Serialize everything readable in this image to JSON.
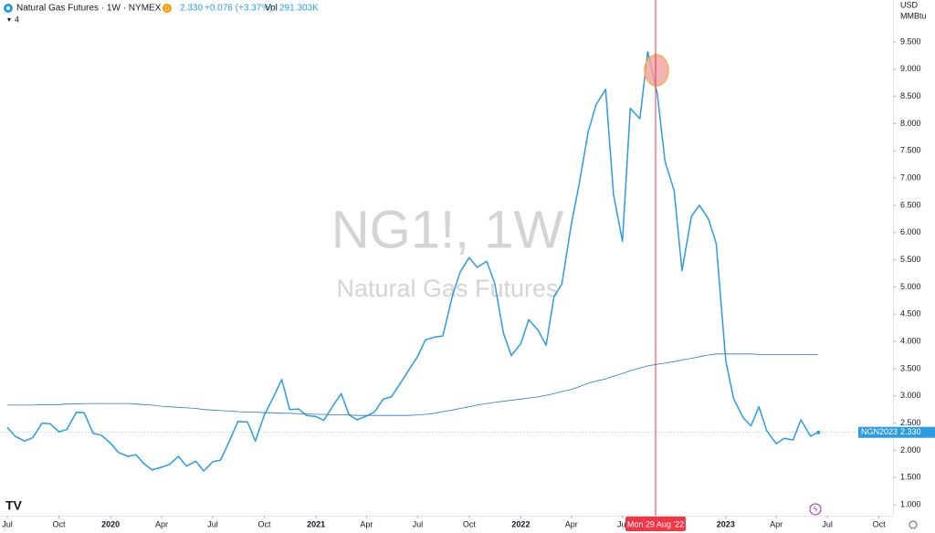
{
  "chart_data": {
    "type": "line",
    "header": {
      "title": "Natural Gas Futures · 1W · NYMEX",
      "badge": "D",
      "last": "2.330",
      "change": "+0.076 (+3.37%)",
      "vol_label": "Vol",
      "volume": "291.303K",
      "indicators": "4"
    },
    "currency": "USD",
    "unit": "MMBtu",
    "watermark": {
      "symbol": "NG1!, 1W",
      "name": "Natural Gas Futures"
    },
    "x": [
      "2019-07-01",
      "2019-07-15",
      "2019-08-01",
      "2019-08-15",
      "2019-09-01",
      "2019-09-15",
      "2019-10-01",
      "2019-10-15",
      "2019-11-01",
      "2019-11-15",
      "2019-12-01",
      "2019-12-15",
      "2020-01-01",
      "2020-01-15",
      "2020-02-01",
      "2020-02-15",
      "2020-03-01",
      "2020-03-15",
      "2020-04-01",
      "2020-04-15",
      "2020-05-01",
      "2020-05-15",
      "2020-06-01",
      "2020-06-15",
      "2020-07-01",
      "2020-07-15",
      "2020-08-01",
      "2020-08-15",
      "2020-09-01",
      "2020-09-15",
      "2020-10-01",
      "2020-10-15",
      "2020-11-01",
      "2020-11-15",
      "2020-12-01",
      "2020-12-15",
      "2021-01-01",
      "2021-01-15",
      "2021-02-01",
      "2021-02-15",
      "2021-03-01",
      "2021-03-15",
      "2021-04-01",
      "2021-04-15",
      "2021-05-01",
      "2021-05-15",
      "2021-06-01",
      "2021-06-15",
      "2021-07-01",
      "2021-07-15",
      "2021-08-01",
      "2021-08-15",
      "2021-09-01",
      "2021-09-15",
      "2021-10-01",
      "2021-10-15",
      "2021-11-01",
      "2021-11-15",
      "2021-12-01",
      "2021-12-15",
      "2022-01-01",
      "2022-01-15",
      "2022-02-01",
      "2022-02-15",
      "2022-03-01",
      "2022-03-15",
      "2022-04-01",
      "2022-04-15",
      "2022-05-01",
      "2022-05-15",
      "2022-06-01",
      "2022-06-15",
      "2022-07-01",
      "2022-07-15",
      "2022-08-01",
      "2022-08-15",
      "2022-09-01",
      "2022-09-15",
      "2022-10-01",
      "2022-10-15",
      "2022-11-01",
      "2022-11-15",
      "2022-12-01",
      "2022-12-15",
      "2023-01-01",
      "2023-01-15",
      "2023-02-01",
      "2023-02-15",
      "2023-03-01",
      "2023-03-15",
      "2023-04-01",
      "2023-04-15",
      "2023-05-01",
      "2023-05-15",
      "2023-06-01",
      "2023-06-15"
    ],
    "series": [
      {
        "name": "NG1!",
        "color": "#2d9be0",
        "width": 1.5,
        "values": [
          2.42,
          2.26,
          2.17,
          2.23,
          2.5,
          2.49,
          2.34,
          2.38,
          2.7,
          2.69,
          2.31,
          2.28,
          2.13,
          1.96,
          1.89,
          1.92,
          1.75,
          1.64,
          1.69,
          1.74,
          1.89,
          1.71,
          1.8,
          1.62,
          1.79,
          1.82,
          2.2,
          2.53,
          2.52,
          2.17,
          2.65,
          2.93,
          3.3,
          2.75,
          2.76,
          2.64,
          2.62,
          2.55,
          2.83,
          3.04,
          2.65,
          2.56,
          2.63,
          2.7,
          2.94,
          2.98,
          3.24,
          3.47,
          3.72,
          4.03,
          4.08,
          4.1,
          4.84,
          5.28,
          5.54,
          5.36,
          5.47,
          5.08,
          4.15,
          3.74,
          3.96,
          4.4,
          4.2,
          3.93,
          4.82,
          5.05,
          6.16,
          6.9,
          7.85,
          8.35,
          8.63,
          6.7,
          5.84,
          8.28,
          8.09,
          9.32,
          8.55,
          7.3,
          6.77,
          5.3,
          6.3,
          6.5,
          6.25,
          5.8,
          3.65,
          2.95,
          2.6,
          2.45,
          2.8,
          2.36,
          2.12,
          2.22,
          2.19,
          2.56,
          2.26,
          2.33
        ]
      },
      {
        "name": "MA",
        "color": "#2a78b8",
        "width": 0.8,
        "values": [
          2.83,
          2.83,
          2.83,
          2.83,
          2.84,
          2.84,
          2.84,
          2.85,
          2.85,
          2.86,
          2.86,
          2.86,
          2.86,
          2.86,
          2.86,
          2.85,
          2.84,
          2.83,
          2.81,
          2.8,
          2.79,
          2.78,
          2.77,
          2.75,
          2.74,
          2.73,
          2.72,
          2.71,
          2.7,
          2.7,
          2.69,
          2.69,
          2.68,
          2.68,
          2.67,
          2.67,
          2.66,
          2.66,
          2.65,
          2.65,
          2.65,
          2.64,
          2.64,
          2.64,
          2.64,
          2.64,
          2.64,
          2.64,
          2.65,
          2.66,
          2.68,
          2.71,
          2.74,
          2.77,
          2.8,
          2.83,
          2.86,
          2.88,
          2.9,
          2.92,
          2.94,
          2.96,
          2.98,
          3.01,
          3.04,
          3.08,
          3.12,
          3.17,
          3.23,
          3.27,
          3.31,
          3.36,
          3.41,
          3.46,
          3.51,
          3.55,
          3.58,
          3.6,
          3.63,
          3.66,
          3.69,
          3.72,
          3.75,
          3.77,
          3.77,
          3.77,
          3.77,
          3.77,
          3.76,
          3.76,
          3.76,
          3.76,
          3.76,
          3.76,
          3.76,
          3.76
        ]
      }
    ],
    "price_line": {
      "name": "NGN2023",
      "value": 2.33,
      "value_label": "2.330",
      "color": "#2d9be0"
    },
    "crosshair": {
      "x": "2022-08-29",
      "label": "Mon 29 Aug '22",
      "color": "#f23645"
    },
    "xlim": [
      "2019-06-18",
      "2023-10-26"
    ],
    "xticks": [
      {
        "value": "2019-07-01",
        "label": "Jul"
      },
      {
        "value": "2019-10-01",
        "label": "Oct"
      },
      {
        "value": "2020-01-01",
        "label": "2020"
      },
      {
        "value": "2020-04-01",
        "label": "Apr"
      },
      {
        "value": "2020-07-01",
        "label": "Jul"
      },
      {
        "value": "2020-10-01",
        "label": "Oct"
      },
      {
        "value": "2021-01-01",
        "label": "2021"
      },
      {
        "value": "2021-04-01",
        "label": "Apr"
      },
      {
        "value": "2021-07-01",
        "label": "Jul"
      },
      {
        "value": "2021-10-01",
        "label": "Oct"
      },
      {
        "value": "2022-01-01",
        "label": "2022"
      },
      {
        "value": "2022-04-01",
        "label": "Apr"
      },
      {
        "value": "2022-07-01",
        "label": "Jul"
      },
      {
        "value": "2023-01-01",
        "label": "2023"
      },
      {
        "value": "2023-04-01",
        "label": "Apr"
      },
      {
        "value": "2023-07-01",
        "label": "Jul"
      },
      {
        "value": "2023-10-01",
        "label": "Oct"
      }
    ],
    "ylim": [
      0.8,
      10.27
    ],
    "yticks": [
      {
        "value": 1,
        "label": "1.000"
      },
      {
        "value": 1.5,
        "label": "1.500"
      },
      {
        "value": 2,
        "label": "2.000"
      },
      {
        "value": 2.5,
        "label": "2.500"
      },
      {
        "value": 3,
        "label": "3.000"
      },
      {
        "value": 3.5,
        "label": "3.500"
      },
      {
        "value": 4,
        "label": "4.000"
      },
      {
        "value": 4.5,
        "label": "4.500"
      },
      {
        "value": 5,
        "label": "5.000"
      },
      {
        "value": 5.5,
        "label": "5.500"
      },
      {
        "value": 6,
        "label": "6.000"
      },
      {
        "value": 6.5,
        "label": "6.500"
      },
      {
        "value": 7,
        "label": "7.000"
      },
      {
        "value": 7.5,
        "label": "7.500"
      },
      {
        "value": 8,
        "label": "8.000"
      },
      {
        "value": 8.5,
        "label": "8.500"
      },
      {
        "value": 9,
        "label": "9.000"
      },
      {
        "value": 9.5,
        "label": "9.500"
      }
    ],
    "grid": false
  }
}
